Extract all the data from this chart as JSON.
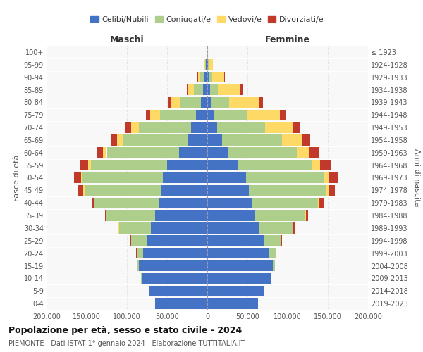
{
  "age_groups": [
    "0-4",
    "5-9",
    "10-14",
    "15-19",
    "20-24",
    "25-29",
    "30-34",
    "35-39",
    "40-44",
    "45-49",
    "50-54",
    "55-59",
    "60-64",
    "65-69",
    "70-74",
    "75-79",
    "80-84",
    "85-89",
    "90-94",
    "95-99",
    "100+"
  ],
  "birth_years": [
    "2019-2023",
    "2014-2018",
    "2009-2013",
    "2004-2008",
    "1999-2003",
    "1994-1998",
    "1989-1993",
    "1984-1988",
    "1979-1983",
    "1974-1978",
    "1969-1973",
    "1964-1968",
    "1959-1963",
    "1954-1958",
    "1949-1953",
    "1944-1948",
    "1939-1943",
    "1934-1938",
    "1929-1933",
    "1924-1928",
    "≤ 1923"
  ],
  "males": {
    "celibi": [
      65000,
      72000,
      82000,
      85000,
      80000,
      75000,
      70000,
      65000,
      60000,
      58000,
      55000,
      50000,
      35000,
      25000,
      20000,
      14000,
      8000,
      5000,
      3500,
      1500,
      500
    ],
    "coniugati": [
      50,
      100,
      500,
      2000,
      8000,
      20000,
      40000,
      60000,
      80000,
      95000,
      100000,
      95000,
      90000,
      80000,
      65000,
      45000,
      25000,
      12000,
      5000,
      1500,
      200
    ],
    "vedovi": [
      1,
      2,
      5,
      10,
      20,
      50,
      100,
      300,
      600,
      1200,
      2000,
      3500,
      5000,
      7000,
      10000,
      12000,
      12000,
      7000,
      3000,
      800,
      100
    ],
    "divorziati": [
      10,
      20,
      50,
      100,
      200,
      500,
      1000,
      2000,
      3500,
      6000,
      9000,
      10000,
      8000,
      7000,
      6500,
      5000,
      3000,
      1500,
      600,
      200,
      30
    ]
  },
  "females": {
    "nubili": [
      63000,
      70000,
      79000,
      82000,
      76000,
      70000,
      65000,
      60000,
      56000,
      52000,
      48000,
      38000,
      26000,
      18000,
      12000,
      8000,
      5000,
      3500,
      2000,
      800,
      300
    ],
    "coniugate": [
      60,
      120,
      600,
      2500,
      9000,
      22000,
      42000,
      62000,
      82000,
      95000,
      97000,
      92000,
      85000,
      75000,
      60000,
      42000,
      22000,
      10000,
      4000,
      900,
      100
    ],
    "vedove": [
      2,
      3,
      8,
      20,
      50,
      120,
      300,
      800,
      1800,
      3500,
      6000,
      10000,
      16000,
      25000,
      35000,
      40000,
      38000,
      28000,
      15000,
      5000,
      800
    ],
    "divorziate": [
      12,
      25,
      60,
      120,
      250,
      600,
      1200,
      2500,
      4500,
      8000,
      12000,
      14000,
      12000,
      10000,
      9000,
      7000,
      4500,
      2500,
      1200,
      400,
      50
    ]
  },
  "colors": {
    "celibi_nubili": "#4472C4",
    "coniugati": "#AECF8B",
    "vedovi": "#FFD966",
    "divorziati": "#C0392B"
  },
  "title": "Popolazione per età, sesso e stato civile - 2024",
  "subtitle": "PIEMONTE - Dati ISTAT 1° gennaio 2024 - Elaborazione TUTTITALIA.IT",
  "xlabel_left": "Maschi",
  "xlabel_right": "Femmine",
  "ylabel_left": "Fasce di età",
  "ylabel_right": "Anni di nascita",
  "xlim": 200000,
  "background_color": "#ffffff",
  "legend_labels": [
    "Celibi/Nubili",
    "Coniugati/e",
    "Vedovi/e",
    "Divorziati/e"
  ]
}
